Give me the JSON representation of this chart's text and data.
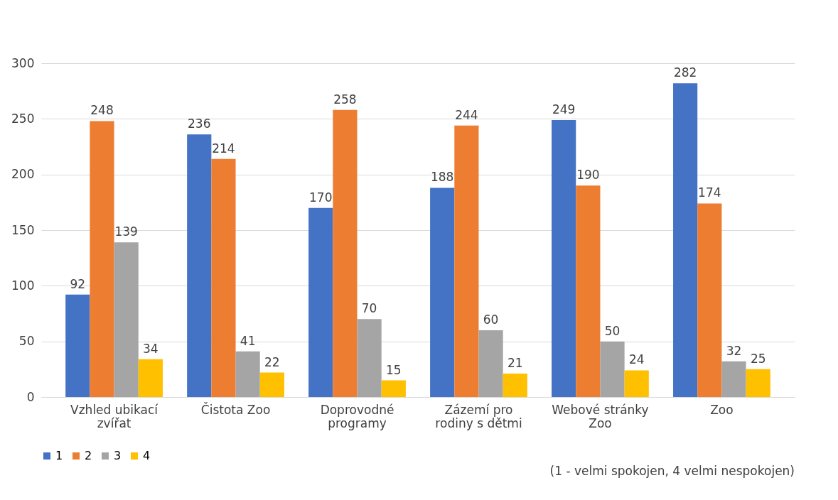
{
  "chart_data": {
    "type": "bar",
    "categories": [
      "Vzhled ubikací zvířat",
      "Čistota Zoo",
      "Doprovodné programy",
      "Zázemí pro rodiny s dětmi",
      "Webové stránky Zoo",
      "Zoo"
    ],
    "series": [
      {
        "name": "1",
        "color": "#4472c4",
        "values": [
          92,
          236,
          170,
          188,
          249,
          282
        ]
      },
      {
        "name": "2",
        "color": "#ed7d31",
        "values": [
          248,
          214,
          258,
          244,
          190,
          174
        ]
      },
      {
        "name": "3",
        "color": "#a5a5a5",
        "values": [
          139,
          41,
          70,
          60,
          50,
          32
        ]
      },
      {
        "name": "4",
        "color": "#ffc000",
        "values": [
          34,
          22,
          15,
          21,
          24,
          25
        ]
      }
    ],
    "ylim": [
      0,
      300
    ],
    "yticks": [
      0,
      50,
      100,
      150,
      200,
      250,
      300
    ],
    "grid": "y",
    "data_labels": true,
    "legend": "bottom",
    "annotations": [
      "(1 - velmi spokojen, 4 velmi nespokojen)"
    ]
  }
}
